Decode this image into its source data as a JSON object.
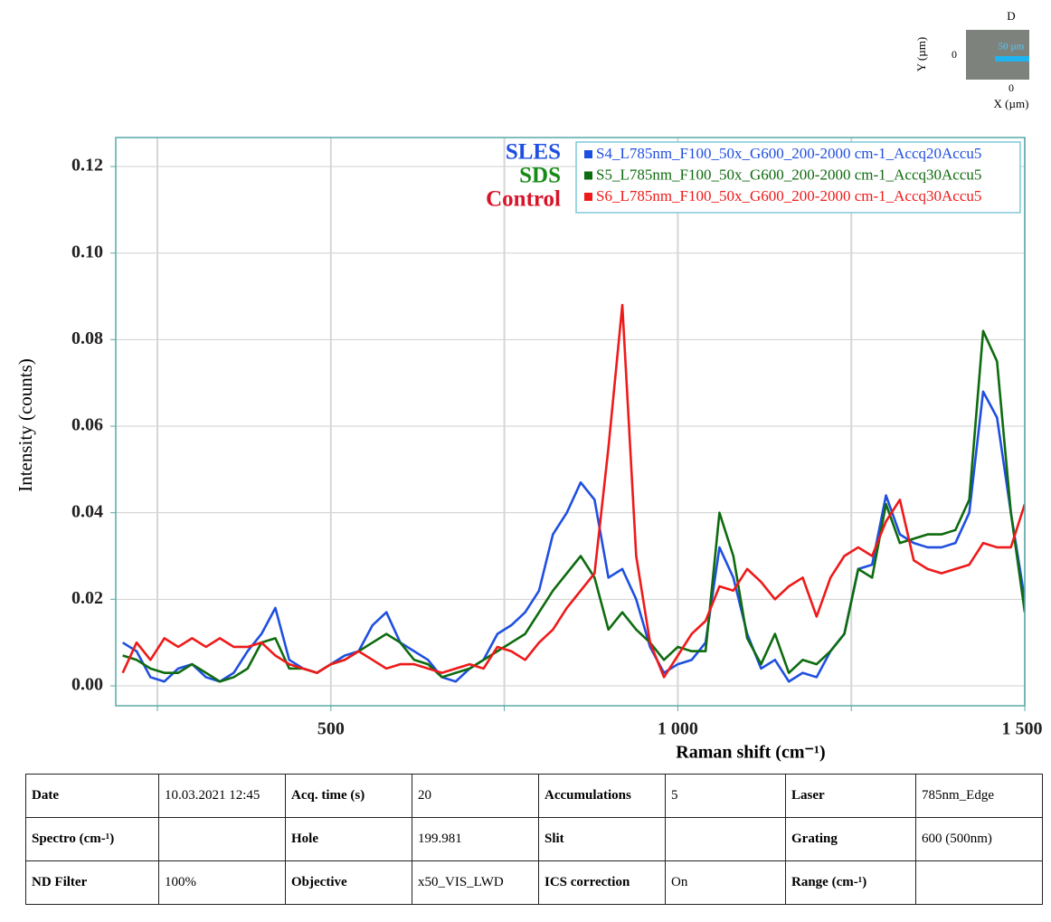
{
  "chart_data": {
    "type": "line",
    "y_label": "Intensity (counts)",
    "x_label": "Raman shift (cm⁻¹)",
    "xlim": [
      190,
      1500
    ],
    "ylim": [
      -0.0046,
      0.1267
    ],
    "xticks": [
      {
        "value": 250,
        "label": null
      },
      500,
      {
        "value": 750,
        "label": null
      },
      {
        "value": 1000,
        "label": "1 000"
      },
      {
        "value": 1250,
        "label": null
      },
      {
        "value": 1500,
        "label": "1 500"
      }
    ],
    "yticks": [
      {
        "value": 0,
        "label": "0.00"
      },
      {
        "value": 0.02,
        "label": "0.02"
      },
      {
        "value": 0.04,
        "label": "0.04"
      },
      {
        "value": 0.06,
        "label": "0.06"
      },
      {
        "value": 0.08,
        "label": "0.08"
      },
      {
        "value": 0.1,
        "label": "0.10"
      },
      {
        "value": 0.12,
        "label": "0.12"
      }
    ],
    "grid": true,
    "legend_position": "top-right",
    "annotations": [
      {
        "text": "SLES",
        "color": "#1f4fe0"
      },
      {
        "text": "SDS",
        "color": "#168a16"
      },
      {
        "text": "Control",
        "color": "#d8142a"
      }
    ],
    "x": [
      200,
      220,
      240,
      260,
      280,
      300,
      320,
      340,
      360,
      380,
      400,
      420,
      440,
      460,
      480,
      500,
      520,
      540,
      560,
      580,
      600,
      620,
      640,
      660,
      680,
      700,
      720,
      740,
      760,
      780,
      800,
      820,
      840,
      860,
      880,
      900,
      920,
      940,
      960,
      980,
      1000,
      1020,
      1040,
      1060,
      1080,
      1100,
      1120,
      1140,
      1160,
      1180,
      1200,
      1220,
      1240,
      1260,
      1280,
      1300,
      1320,
      1340,
      1360,
      1380,
      1400,
      1420,
      1440,
      1460,
      1480,
      1500
    ],
    "series": [
      {
        "name": "S4_L785nm_F100_50x_G600_200-2000 cm-1_Accq20Accu5",
        "color": "#1f4fe0",
        "values": [
          0.01,
          0.008,
          0.002,
          0.001,
          0.004,
          0.005,
          0.002,
          0.001,
          0.003,
          0.008,
          0.012,
          0.018,
          0.006,
          0.004,
          0.003,
          0.005,
          0.007,
          0.008,
          0.014,
          0.017,
          0.01,
          0.008,
          0.006,
          0.002,
          0.001,
          0.004,
          0.006,
          0.012,
          0.014,
          0.017,
          0.022,
          0.035,
          0.04,
          0.047,
          0.043,
          0.025,
          0.027,
          0.02,
          0.009,
          0.003,
          0.005,
          0.006,
          0.01,
          0.032,
          0.025,
          0.012,
          0.004,
          0.006,
          0.001,
          0.003,
          0.002,
          0.008,
          0.012,
          0.027,
          0.028,
          0.044,
          0.035,
          0.033,
          0.032,
          0.032,
          0.033,
          0.04,
          0.068,
          0.062,
          0.04,
          0.02
        ]
      },
      {
        "name": "S5_L785nm_F100_50x_G600_200-2000 cm-1_Accq30Accu5",
        "color": "#0e6b0e",
        "values": [
          0.007,
          0.006,
          0.004,
          0.003,
          0.003,
          0.005,
          0.003,
          0.001,
          0.002,
          0.004,
          0.01,
          0.011,
          0.004,
          0.004,
          0.003,
          0.005,
          0.006,
          0.008,
          0.01,
          0.012,
          0.01,
          0.006,
          0.005,
          0.002,
          0.003,
          0.004,
          0.006,
          0.008,
          0.01,
          0.012,
          0.017,
          0.022,
          0.026,
          0.03,
          0.025,
          0.013,
          0.017,
          0.013,
          0.01,
          0.006,
          0.009,
          0.008,
          0.008,
          0.04,
          0.03,
          0.011,
          0.005,
          0.012,
          0.003,
          0.006,
          0.005,
          0.008,
          0.012,
          0.027,
          0.025,
          0.042,
          0.033,
          0.034,
          0.035,
          0.035,
          0.036,
          0.043,
          0.082,
          0.075,
          0.04,
          0.017
        ]
      },
      {
        "name": "S6_L785nm_F100_50x_G600_200-2000 cm-1_Accq30Accu5",
        "color": "#ee1a1a",
        "values": [
          0.003,
          0.01,
          0.006,
          0.011,
          0.009,
          0.011,
          0.009,
          0.011,
          0.009,
          0.009,
          0.01,
          0.007,
          0.005,
          0.004,
          0.003,
          0.005,
          0.006,
          0.008,
          0.006,
          0.004,
          0.005,
          0.005,
          0.004,
          0.003,
          0.004,
          0.005,
          0.004,
          0.009,
          0.008,
          0.006,
          0.01,
          0.013,
          0.018,
          0.022,
          0.026,
          0.055,
          0.088,
          0.03,
          0.01,
          0.002,
          0.007,
          0.012,
          0.015,
          0.023,
          0.022,
          0.027,
          0.024,
          0.02,
          0.023,
          0.025,
          0.016,
          0.025,
          0.03,
          0.032,
          0.03,
          0.038,
          0.043,
          0.029,
          0.027,
          0.026,
          0.027,
          0.028,
          0.033,
          0.032,
          0.032,
          0.042
        ]
      }
    ]
  },
  "inset": {
    "label": "D",
    "y_label": "Y (µm)",
    "y_zero": "0",
    "x_zero": "0",
    "x_label": "X (µm)",
    "scale_bar": "50 µm"
  },
  "table": {
    "rows": [
      [
        "Date",
        "10.03.2021 12:45",
        "Acq. time (s)",
        "20",
        "Accumulations",
        "5",
        "Laser",
        "785nm_Edge"
      ],
      [
        "Spectro (cm-¹)",
        null,
        "Hole",
        "199.981",
        "Slit",
        null,
        "Grating",
        "600 (500nm)"
      ],
      [
        "ND Filter",
        "100%",
        "Objective",
        "x50_VIS_LWD",
        "ICS correction",
        "On",
        "Range (cm-¹)",
        null
      ]
    ]
  }
}
